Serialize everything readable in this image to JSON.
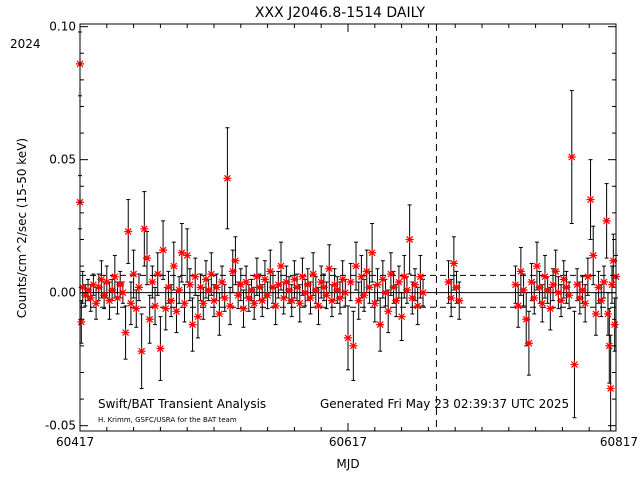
{
  "chart_data": {
    "type": "scatter",
    "title": "XXX J2046.8-1514 DAILY",
    "year_label": "2024",
    "xlabel": "MJD",
    "ylabel": "Counts/cm^2/sec (15-50 keV)",
    "xlim": [
      60417,
      60817
    ],
    "ylim": [
      -0.052,
      0.101
    ],
    "x_ticks": [
      60417,
      60617,
      60817
    ],
    "x_tick_labels": [
      "60417",
      "60617",
      "60817"
    ],
    "y_ticks": [
      -0.05,
      0.0,
      0.05,
      0.1
    ],
    "y_tick_labels": [
      "-0.05",
      "0.00",
      "0.05",
      "0.10"
    ],
    "grid": false,
    "reference_lines": {
      "zero_level": 0.0,
      "dashed_levels": [
        0.0065,
        -0.0055
      ],
      "vertical_dashed_mjd": 60683
    },
    "footer_left": "Swift/BAT Transient Analysis",
    "footer_right": "Generated Fri May 23 02:39:37 UTC 2025",
    "credit": "H. Krimm, GSFC/USRA for the BAT team",
    "marker_color": "#ff0000",
    "errorbar_color": "#000000",
    "series": [
      {
        "points": [
          {
            "x": 60417,
            "y": 0.086,
            "e": 0.012
          },
          {
            "x": 60417,
            "y": 0.034,
            "e": 0.01
          },
          {
            "x": 60418,
            "y": -0.011,
            "e": 0.008
          },
          {
            "x": 60419,
            "y": 0.002,
            "e": 0.006
          },
          {
            "x": 60421,
            "y": -0.001,
            "e": 0.004
          },
          {
            "x": 60423,
            "y": 0.001,
            "e": 0.004
          },
          {
            "x": 60425,
            "y": -0.002,
            "e": 0.005
          },
          {
            "x": 60427,
            "y": 0.003,
            "e": 0.004
          },
          {
            "x": 60429,
            "y": -0.004,
            "e": 0.006
          },
          {
            "x": 60431,
            "y": 0.002,
            "e": 0.005
          },
          {
            "x": 60433,
            "y": 0.005,
            "e": 0.007
          },
          {
            "x": 60435,
            "y": -0.001,
            "e": 0.005
          },
          {
            "x": 60437,
            "y": 0.004,
            "e": 0.006
          },
          {
            "x": 60439,
            "y": -0.003,
            "e": 0.007
          },
          {
            "x": 60441,
            "y": 0.001,
            "e": 0.004
          },
          {
            "x": 60443,
            "y": 0.006,
            "e": 0.008
          },
          {
            "x": 60445,
            "y": -0.002,
            "e": 0.006
          },
          {
            "x": 60447,
            "y": 0.003,
            "e": 0.005
          },
          {
            "x": 60449,
            "y": 0.0,
            "e": 0.004
          },
          {
            "x": 60451,
            "y": -0.015,
            "e": 0.01
          },
          {
            "x": 60453,
            "y": 0.023,
            "e": 0.012
          },
          {
            "x": 60455,
            "y": -0.004,
            "e": 0.008
          },
          {
            "x": 60457,
            "y": 0.007,
            "e": 0.009
          },
          {
            "x": 60459,
            "y": -0.006,
            "e": 0.007
          },
          {
            "x": 60461,
            "y": 0.002,
            "e": 0.005
          },
          {
            "x": 60463,
            "y": -0.022,
            "e": 0.014
          },
          {
            "x": 60465,
            "y": 0.024,
            "e": 0.014
          },
          {
            "x": 60467,
            "y": 0.013,
            "e": 0.01
          },
          {
            "x": 60469,
            "y": -0.01,
            "e": 0.009
          },
          {
            "x": 60471,
            "y": 0.004,
            "e": 0.006
          },
          {
            "x": 60473,
            "y": -0.005,
            "e": 0.007
          },
          {
            "x": 60475,
            "y": 0.007,
            "e": 0.008
          },
          {
            "x": 60477,
            "y": -0.021,
            "e": 0.012
          },
          {
            "x": 60479,
            "y": 0.016,
            "e": 0.011
          },
          {
            "x": 60481,
            "y": -0.006,
            "e": 0.008
          },
          {
            "x": 60483,
            "y": 0.002,
            "e": 0.006
          },
          {
            "x": 60485,
            "y": -0.003,
            "e": 0.006
          },
          {
            "x": 60487,
            "y": 0.01,
            "e": 0.009
          },
          {
            "x": 60489,
            "y": -0.007,
            "e": 0.008
          },
          {
            "x": 60491,
            "y": 0.001,
            "e": 0.005
          },
          {
            "x": 60493,
            "y": 0.015,
            "e": 0.011
          },
          {
            "x": 60495,
            "y": -0.004,
            "e": 0.007
          },
          {
            "x": 60497,
            "y": 0.014,
            "e": 0.01
          },
          {
            "x": 60499,
            "y": 0.003,
            "e": 0.006
          },
          {
            "x": 60501,
            "y": -0.012,
            "e": 0.01
          },
          {
            "x": 60503,
            "y": 0.006,
            "e": 0.007
          },
          {
            "x": 60505,
            "y": -0.009,
            "e": 0.008
          },
          {
            "x": 60507,
            "y": 0.002,
            "e": 0.005
          },
          {
            "x": 60509,
            "y": -0.004,
            "e": 0.006
          },
          {
            "x": 60511,
            "y": 0.005,
            "e": 0.007
          },
          {
            "x": 60513,
            "y": 0.001,
            "e": 0.004
          },
          {
            "x": 60515,
            "y": 0.007,
            "e": 0.008
          },
          {
            "x": 60517,
            "y": -0.003,
            "e": 0.006
          },
          {
            "x": 60519,
            "y": 0.002,
            "e": 0.005
          },
          {
            "x": 60521,
            "y": -0.008,
            "e": 0.008
          },
          {
            "x": 60523,
            "y": 0.004,
            "e": 0.006
          },
          {
            "x": 60525,
            "y": -0.002,
            "e": 0.005
          },
          {
            "x": 60527,
            "y": 0.043,
            "e": 0.019
          },
          {
            "x": 60529,
            "y": -0.005,
            "e": 0.007
          },
          {
            "x": 60531,
            "y": 0.008,
            "e": 0.008
          },
          {
            "x": 60533,
            "y": 0.012,
            "e": 0.009
          },
          {
            "x": 60535,
            "y": -0.001,
            "e": 0.005
          },
          {
            "x": 60537,
            "y": 0.003,
            "e": 0.006
          },
          {
            "x": 60539,
            "y": -0.006,
            "e": 0.007
          },
          {
            "x": 60541,
            "y": 0.004,
            "e": 0.006
          },
          {
            "x": 60543,
            "y": -0.002,
            "e": 0.005
          },
          {
            "x": 60545,
            "y": 0.001,
            "e": 0.004
          },
          {
            "x": 60547,
            "y": -0.004,
            "e": 0.006
          },
          {
            "x": 60549,
            "y": 0.006,
            "e": 0.007
          },
          {
            "x": 60551,
            "y": 0.002,
            "e": 0.005
          },
          {
            "x": 60553,
            "y": -0.003,
            "e": 0.006
          },
          {
            "x": 60555,
            "y": 0.005,
            "e": 0.007
          },
          {
            "x": 60557,
            "y": -0.001,
            "e": 0.005
          },
          {
            "x": 60559,
            "y": 0.008,
            "e": 0.008
          },
          {
            "x": 60561,
            "y": 0.002,
            "e": 0.006
          },
          {
            "x": 60563,
            "y": -0.005,
            "e": 0.007
          },
          {
            "x": 60565,
            "y": 0.003,
            "e": 0.005
          },
          {
            "x": 60567,
            "y": 0.01,
            "e": 0.009
          },
          {
            "x": 60569,
            "y": -0.002,
            "e": 0.006
          },
          {
            "x": 60571,
            "y": 0.004,
            "e": 0.006
          },
          {
            "x": 60573,
            "y": 0.001,
            "e": 0.005
          },
          {
            "x": 60575,
            "y": -0.003,
            "e": 0.006
          },
          {
            "x": 60577,
            "y": 0.005,
            "e": 0.007
          },
          {
            "x": 60579,
            "y": 0.002,
            "e": 0.005
          },
          {
            "x": 60581,
            "y": -0.004,
            "e": 0.007
          },
          {
            "x": 60583,
            "y": 0.006,
            "e": 0.007
          },
          {
            "x": 60585,
            "y": 0.0,
            "e": 0.005
          },
          {
            "x": 60587,
            "y": 0.003,
            "e": 0.006
          },
          {
            "x": 60589,
            "y": -0.002,
            "e": 0.006
          },
          {
            "x": 60591,
            "y": 0.007,
            "e": 0.008
          },
          {
            "x": 60593,
            "y": 0.001,
            "e": 0.005
          },
          {
            "x": 60595,
            "y": -0.005,
            "e": 0.007
          },
          {
            "x": 60597,
            "y": 0.004,
            "e": 0.006
          },
          {
            "x": 60599,
            "y": 0.002,
            "e": 0.005
          },
          {
            "x": 60601,
            "y": -0.001,
            "e": 0.005
          },
          {
            "x": 60603,
            "y": 0.009,
            "e": 0.009
          },
          {
            "x": 60605,
            "y": -0.003,
            "e": 0.006
          },
          {
            "x": 60607,
            "y": 0.003,
            "e": 0.006
          },
          {
            "x": 60609,
            "y": 0.001,
            "e": 0.005
          },
          {
            "x": 60611,
            "y": -0.002,
            "e": 0.006
          },
          {
            "x": 60613,
            "y": 0.005,
            "e": 0.007
          },
          {
            "x": 60615,
            "y": 0.0,
            "e": 0.005
          },
          {
            "x": 60617,
            "y": -0.017,
            "e": 0.012
          },
          {
            "x": 60619,
            "y": 0.004,
            "e": 0.007
          },
          {
            "x": 60621,
            "y": -0.02,
            "e": 0.013
          },
          {
            "x": 60623,
            "y": 0.01,
            "e": 0.009
          },
          {
            "x": 60625,
            "y": -0.003,
            "e": 0.007
          },
          {
            "x": 60627,
            "y": 0.006,
            "e": 0.008
          },
          {
            "x": 60629,
            "y": -0.001,
            "e": 0.006
          },
          {
            "x": 60631,
            "y": 0.008,
            "e": 0.008
          },
          {
            "x": 60633,
            "y": 0.002,
            "e": 0.006
          },
          {
            "x": 60635,
            "y": 0.015,
            "e": 0.011
          },
          {
            "x": 60637,
            "y": -0.004,
            "e": 0.007
          },
          {
            "x": 60639,
            "y": 0.003,
            "e": 0.006
          },
          {
            "x": 60641,
            "y": -0.012,
            "e": 0.01
          },
          {
            "x": 60643,
            "y": 0.005,
            "e": 0.007
          },
          {
            "x": 60645,
            "y": 0.0,
            "e": 0.005
          },
          {
            "x": 60647,
            "y": -0.007,
            "e": 0.008
          },
          {
            "x": 60649,
            "y": 0.007,
            "e": 0.008
          },
          {
            "x": 60651,
            "y": 0.002,
            "e": 0.006
          },
          {
            "x": 60653,
            "y": -0.003,
            "e": 0.006
          },
          {
            "x": 60655,
            "y": 0.004,
            "e": 0.006
          },
          {
            "x": 60657,
            "y": -0.009,
            "e": 0.009
          },
          {
            "x": 60659,
            "y": 0.006,
            "e": 0.008
          },
          {
            "x": 60661,
            "y": 0.001,
            "e": 0.005
          },
          {
            "x": 60663,
            "y": 0.02,
            "e": 0.013
          },
          {
            "x": 60665,
            "y": -0.002,
            "e": 0.006
          },
          {
            "x": 60667,
            "y": 0.003,
            "e": 0.006
          },
          {
            "x": 60669,
            "y": -0.005,
            "e": 0.007
          },
          {
            "x": 60671,
            "y": 0.006,
            "e": 0.008
          },
          {
            "x": 60673,
            "y": 0.0,
            "e": 0.005
          },
          {
            "x": 60692,
            "y": 0.004,
            "e": 0.008
          },
          {
            "x": 60694,
            "y": -0.002,
            "e": 0.007
          },
          {
            "x": 60696,
            "y": 0.011,
            "e": 0.01
          },
          {
            "x": 60698,
            "y": 0.002,
            "e": 0.006
          },
          {
            "x": 60700,
            "y": -0.003,
            "e": 0.007
          },
          {
            "x": 60742,
            "y": 0.003,
            "e": 0.007
          },
          {
            "x": 60744,
            "y": -0.005,
            "e": 0.008
          },
          {
            "x": 60746,
            "y": 0.008,
            "e": 0.009
          },
          {
            "x": 60748,
            "y": 0.001,
            "e": 0.006
          },
          {
            "x": 60750,
            "y": -0.01,
            "e": 0.01
          },
          {
            "x": 60752,
            "y": -0.019,
            "e": 0.012
          },
          {
            "x": 60754,
            "y": 0.004,
            "e": 0.007
          },
          {
            "x": 60756,
            "y": -0.002,
            "e": 0.006
          },
          {
            "x": 60758,
            "y": 0.01,
            "e": 0.009
          },
          {
            "x": 60760,
            "y": 0.002,
            "e": 0.006
          },
          {
            "x": 60762,
            "y": -0.004,
            "e": 0.007
          },
          {
            "x": 60764,
            "y": 0.006,
            "e": 0.008
          },
          {
            "x": 60766,
            "y": 0.001,
            "e": 0.005
          },
          {
            "x": 60768,
            "y": -0.006,
            "e": 0.008
          },
          {
            "x": 60770,
            "y": 0.003,
            "e": 0.006
          },
          {
            "x": 60772,
            "y": 0.008,
            "e": 0.008
          },
          {
            "x": 60774,
            "y": 0.0,
            "e": 0.006
          },
          {
            "x": 60776,
            "y": -0.003,
            "e": 0.006
          },
          {
            "x": 60778,
            "y": 0.005,
            "e": 0.007
          },
          {
            "x": 60780,
            "y": 0.002,
            "e": 0.006
          },
          {
            "x": 60782,
            "y": -0.001,
            "e": 0.005
          },
          {
            "x": 60784,
            "y": 0.051,
            "e": 0.025
          },
          {
            "x": 60786,
            "y": -0.027,
            "e": 0.02
          },
          {
            "x": 60788,
            "y": 0.003,
            "e": 0.006
          },
          {
            "x": 60790,
            "y": -0.002,
            "e": 0.006
          },
          {
            "x": 60792,
            "y": 0.001,
            "e": 0.005
          },
          {
            "x": 60794,
            "y": -0.004,
            "e": 0.007
          },
          {
            "x": 60796,
            "y": 0.006,
            "e": 0.007
          },
          {
            "x": 60798,
            "y": 0.035,
            "e": 0.015
          },
          {
            "x": 60800,
            "y": 0.014,
            "e": 0.011
          },
          {
            "x": 60802,
            "y": -0.008,
            "e": 0.008
          },
          {
            "x": 60804,
            "y": 0.002,
            "e": 0.006
          },
          {
            "x": 60806,
            "y": -0.003,
            "e": 0.006
          },
          {
            "x": 60808,
            "y": 0.004,
            "e": 0.006
          },
          {
            "x": 60810,
            "y": 0.027,
            "e": 0.014
          },
          {
            "x": 60811,
            "y": -0.008,
            "e": 0.008
          },
          {
            "x": 60812,
            "y": -0.02,
            "e": 0.014
          },
          {
            "x": 60813,
            "y": -0.036,
            "e": 0.02
          },
          {
            "x": 60814,
            "y": 0.003,
            "e": 0.007
          },
          {
            "x": 60815,
            "y": 0.012,
            "e": 0.01
          },
          {
            "x": 60816,
            "y": -0.012,
            "e": 0.01
          },
          {
            "x": 60817,
            "y": 0.006,
            "e": 0.008
          }
        ]
      }
    ]
  }
}
